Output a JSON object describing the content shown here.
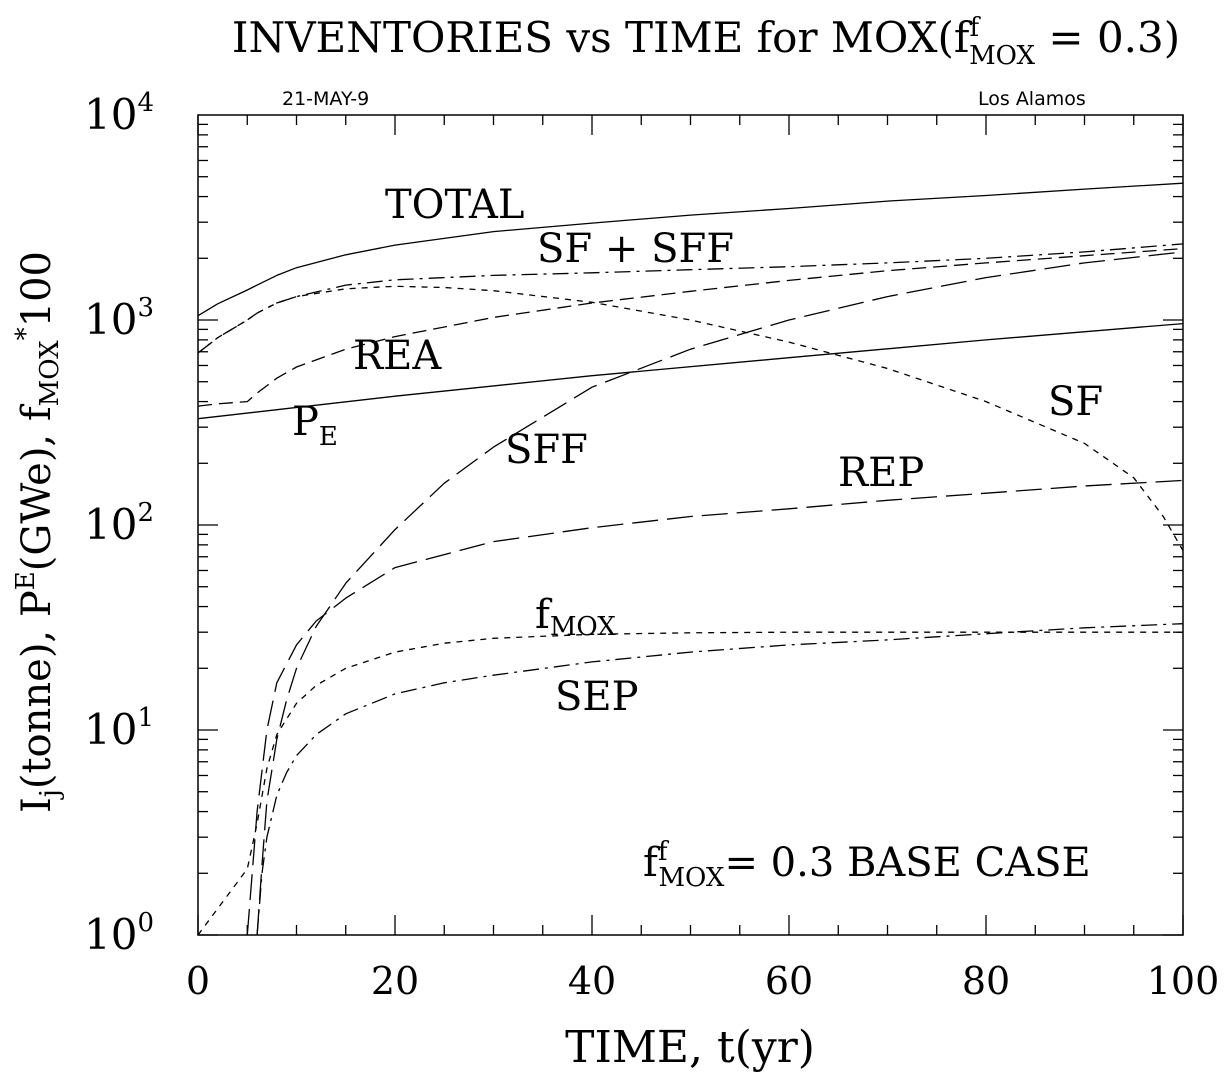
{
  "chart_data": {
    "type": "line",
    "title": {
      "prefix": "INVENTORIES vs TIME for MOX(f",
      "sup": "f",
      "sub": "MOX",
      "suffix": " = 0.3)"
    },
    "header_left": "21-MAY-9",
    "header_right": "Los Alamos",
    "xlabel": "TIME, t(yr)",
    "ylabel": {
      "p1": "I",
      "p1_sub": "j",
      "p2": "(tonne), P",
      "p2_sup": "E",
      "p3": "(GWe), f",
      "p3_sub": "MOX",
      "p3_sup": "*",
      "p4": "100"
    },
    "xlim": [
      0,
      100
    ],
    "ylim": [
      1,
      10000
    ],
    "yscale": "log",
    "x_ticks": [
      "0",
      "20",
      "40",
      "60",
      "80",
      "100"
    ],
    "y_ticks": [
      {
        "value": 1,
        "mantissa": "10",
        "exp": "0"
      },
      {
        "value": 10,
        "mantissa": "10",
        "exp": "1"
      },
      {
        "value": 100,
        "mantissa": "10",
        "exp": "2"
      },
      {
        "value": 1000,
        "mantissa": "10",
        "exp": "3"
      },
      {
        "value": 10000,
        "mantissa": "10",
        "exp": "4"
      }
    ],
    "annotation": {
      "prefix": "f",
      "sup": "f",
      "sub": "MOX",
      "suffix": "= 0.3 BASE CASE"
    },
    "series": [
      {
        "label": "TOTAL",
        "dash": "solid",
        "x": [
          0,
          2,
          5,
          6,
          8,
          10,
          15,
          20,
          30,
          40,
          50,
          60,
          70,
          80,
          90,
          100
        ],
        "y": [
          1050,
          1200,
          1400,
          1480,
          1650,
          1800,
          2080,
          2320,
          2700,
          2970,
          3250,
          3500,
          3800,
          4050,
          4350,
          4650
        ]
      },
      {
        "label": "SF + SFF",
        "dash": "dashdot",
        "x": [
          0,
          2,
          5,
          6,
          8,
          10,
          15,
          20,
          30,
          40,
          50,
          60,
          70,
          80,
          90,
          100
        ],
        "y": [
          690,
          820,
          1000,
          1080,
          1210,
          1300,
          1480,
          1570,
          1650,
          1700,
          1760,
          1820,
          1900,
          2000,
          2150,
          2350
        ]
      },
      {
        "label": "SF",
        "dash": "shortdash",
        "x": [
          0,
          2,
          5,
          6,
          8,
          10,
          15,
          20,
          25,
          30,
          40,
          50,
          60,
          70,
          80,
          90,
          95,
          98,
          100
        ],
        "y": [
          690,
          820,
          1000,
          1080,
          1210,
          1300,
          1420,
          1460,
          1440,
          1390,
          1220,
          1000,
          780,
          580,
          400,
          250,
          170,
          110,
          75
        ]
      },
      {
        "label": "REA",
        "dash": "dash",
        "x": [
          0,
          2,
          5,
          6,
          8,
          10,
          15,
          20,
          30,
          40,
          50,
          60,
          70,
          80,
          90,
          100
        ],
        "y": [
          380,
          390,
          400,
          440,
          520,
          590,
          720,
          830,
          1030,
          1210,
          1380,
          1560,
          1740,
          1900,
          2060,
          2230
        ]
      },
      {
        "label": "P_E",
        "dash": "solid",
        "x": [
          0,
          20,
          40,
          60,
          80,
          100
        ],
        "y": [
          330,
          425,
          535,
          655,
          800,
          960
        ]
      },
      {
        "label": "SFF",
        "dash": "longdash",
        "x": [
          6,
          6.5,
          7,
          8,
          9,
          10,
          12,
          15,
          20,
          25,
          30,
          40,
          50,
          60,
          70,
          80,
          90,
          100
        ],
        "y": [
          1,
          2.2,
          4.5,
          9,
          14,
          20,
          32,
          52,
          95,
          160,
          240,
          470,
          720,
          1000,
          1300,
          1610,
          1900,
          2150
        ]
      },
      {
        "label": "REP",
        "dash": "longdash",
        "x": [
          5,
          5.5,
          6,
          7,
          8,
          10,
          12,
          15,
          20,
          30,
          40,
          50,
          60,
          70,
          80,
          90,
          100
        ],
        "y": [
          1,
          2,
          4,
          10,
          17,
          26,
          34,
          44,
          62,
          83,
          97,
          110,
          120,
          132,
          143,
          155,
          165
        ]
      },
      {
        "label": "f_MOX",
        "dash": "shortdash",
        "x": [
          0,
          5,
          6,
          7,
          8,
          10,
          12,
          15,
          20,
          25,
          30,
          40,
          50,
          60,
          70,
          80,
          90,
          100
        ],
        "y": [
          1,
          2.1,
          3.5,
          6.5,
          9.5,
          13.5,
          16.5,
          20,
          24,
          26.5,
          28,
          29.3,
          29.8,
          30,
          30,
          30,
          30,
          30
        ]
      },
      {
        "label": "SEP",
        "dash": "dashdot",
        "x": [
          6,
          6.5,
          7,
          8,
          9,
          10,
          12,
          15,
          20,
          25,
          30,
          40,
          50,
          60,
          70,
          80,
          90,
          100
        ],
        "y": [
          1,
          2,
          3,
          4.8,
          6.2,
          7.5,
          9.5,
          12,
          15,
          17,
          18.5,
          21.5,
          24,
          26,
          27.5,
          29.5,
          31.5,
          33
        ]
      }
    ],
    "curve_labels": [
      {
        "text": "TOTAL",
        "name": "label-total"
      },
      {
        "text": "SF + SFF",
        "name": "label-sf-sff"
      },
      {
        "text": "REA",
        "name": "label-rea"
      },
      {
        "text": "SF",
        "name": "label-sf"
      },
      {
        "text": "SFF",
        "name": "label-sff"
      },
      {
        "text": "REP",
        "name": "label-rep"
      },
      {
        "text": "SEP",
        "name": "label-sep"
      },
      {
        "text": "P",
        "sub": "E",
        "name": "label-pe"
      },
      {
        "text": "f",
        "sub": "MOX",
        "name": "label-fmox"
      }
    ]
  }
}
